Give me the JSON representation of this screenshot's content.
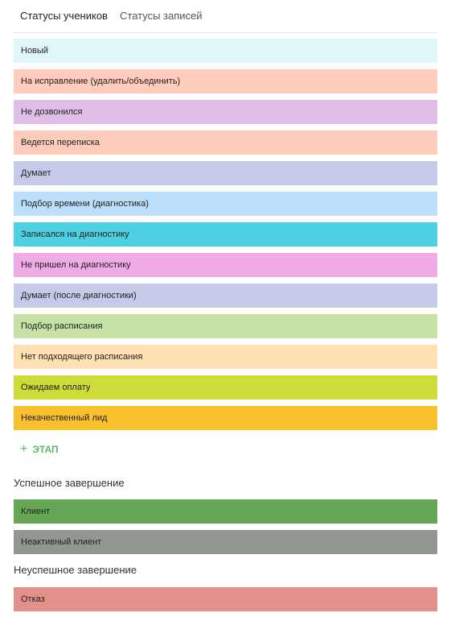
{
  "tabs": [
    {
      "label": "Статусы учеников"
    },
    {
      "label": "Статусы записей"
    }
  ],
  "stages": [
    {
      "label": "Новый",
      "color": "#e0f7fa"
    },
    {
      "label": "На исправление (удалить/объединить)",
      "color": "#ffccbc"
    },
    {
      "label": "Не дозвонился",
      "color": "#e1bee7"
    },
    {
      "label": "Ведется переписка",
      "color": "#ffccbc"
    },
    {
      "label": "Думает",
      "color": "#c5cae9"
    },
    {
      "label": "Подбор времени (диагностика)",
      "color": "#bbdefb"
    },
    {
      "label": "Записался на диагностику",
      "color": "#4dd0e1"
    },
    {
      "label": "Не пришел на диагностику",
      "color": "#f0abe6"
    },
    {
      "label": "Думает (после диагностики)",
      "color": "#c5cae9"
    },
    {
      "label": "Подбор расписания",
      "color": "#c5e1a5"
    },
    {
      "label": "Нет подходящего расписания",
      "color": "#ffe0b2"
    },
    {
      "label": "Ожидаем оплату",
      "color": "#cddc39"
    },
    {
      "label": "Некачественный лид",
      "color": "#fbc02d"
    }
  ],
  "add_stage": {
    "label": "ЭТАП",
    "icon": "plus-icon",
    "color": "#5cb85c"
  },
  "success": {
    "title": "Успешное завершение",
    "stages": [
      {
        "label": "Клиент",
        "color": "#66a657"
      },
      {
        "label": "Неактивный клиент",
        "color": "#919890"
      }
    ]
  },
  "failure": {
    "title": "Неуспешное завершение",
    "stages": [
      {
        "label": "Отказ",
        "color": "#e3908a"
      }
    ]
  }
}
